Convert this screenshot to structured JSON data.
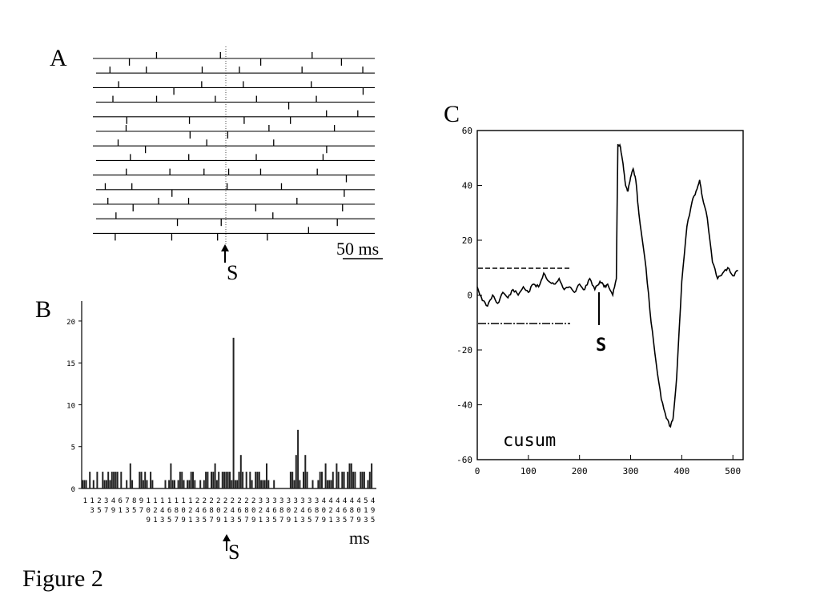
{
  "figure": {
    "caption": "Figure 2"
  },
  "panels": {
    "a": {
      "letter": "A",
      "stimulus_label": "S",
      "scale_bar_label": "50 ms",
      "sweep_count": 13
    },
    "b": {
      "letter": "B",
      "stimulus_label": "S",
      "x_unit_label": "ms",
      "y_ticks": [
        "0",
        "5",
        "10",
        "15",
        "20"
      ],
      "x_tick_columns": [
        [
          "1",
          "",
          ""
        ],
        [
          "1",
          "3",
          ""
        ],
        [
          "2",
          "5",
          ""
        ],
        [
          "3",
          "7",
          ""
        ],
        [
          "4",
          "9",
          ""
        ],
        [
          "6",
          "1",
          ""
        ],
        [
          "7",
          "3",
          ""
        ],
        [
          "8",
          "5",
          ""
        ],
        [
          "9",
          "7",
          ""
        ],
        [
          "1",
          "0",
          "9"
        ],
        [
          "1",
          "2",
          "1"
        ],
        [
          "1",
          "4",
          "3"
        ],
        [
          "1",
          "6",
          "5"
        ],
        [
          "1",
          "8",
          "7"
        ],
        [
          "1",
          "0",
          "9"
        ],
        [
          "1",
          "2",
          "1"
        ],
        [
          "2",
          "4",
          "3"
        ],
        [
          "2",
          "6",
          "5"
        ],
        [
          "2",
          "8",
          "7"
        ],
        [
          "2",
          "0",
          "9"
        ],
        [
          "2",
          "2",
          "1"
        ],
        [
          "2",
          "4",
          "3"
        ],
        [
          "2",
          "6",
          "5"
        ],
        [
          "2",
          "8",
          "7"
        ],
        [
          "2",
          "0",
          "9"
        ],
        [
          "3",
          "2",
          "1"
        ],
        [
          "3",
          "4",
          "3"
        ],
        [
          "3",
          "6",
          "5"
        ],
        [
          "3",
          "8",
          "7"
        ],
        [
          "3",
          "0",
          "9"
        ],
        [
          "3",
          "2",
          "1"
        ],
        [
          "3",
          "4",
          "3"
        ],
        [
          "3",
          "6",
          "5"
        ],
        [
          "3",
          "8",
          "7"
        ],
        [
          "4",
          "0",
          "9"
        ],
        [
          "4",
          "2",
          "1"
        ],
        [
          "4",
          "4",
          "3"
        ],
        [
          "4",
          "6",
          "5"
        ],
        [
          "4",
          "8",
          "7"
        ],
        [
          "4",
          "0",
          "9"
        ],
        [
          "5",
          "1",
          "3"
        ],
        [
          "4",
          "9",
          "5"
        ]
      ]
    },
    "c": {
      "letter": "C",
      "stimulus_label": "S",
      "annotation": "cusum",
      "y_ticks": [
        "60",
        "40",
        "20",
        "0",
        "-20",
        "-40",
        "-60"
      ],
      "x_ticks": [
        "0",
        "100",
        "200",
        "300",
        "400",
        "500"
      ]
    }
  },
  "chart_data": [
    {
      "panel": "A",
      "type": "raster",
      "description_units": "ms",
      "stimulus_time": 0,
      "sweeps": 13
    },
    {
      "panel": "B",
      "type": "bar",
      "title": "",
      "xlabel": "ms",
      "ylabel": "",
      "ylim": [
        0,
        22
      ],
      "bin_count": 160,
      "stimulus_bin": 80,
      "peak": {
        "bin": 82,
        "value": 18
      },
      "baseline_max": 5,
      "secondary_peak": {
        "bin": 117,
        "value": 7
      }
    },
    {
      "panel": "C",
      "type": "line",
      "title": "",
      "xlabel": "",
      "ylabel": "",
      "xlim": [
        0,
        520
      ],
      "ylim": [
        -60,
        60
      ],
      "upper_limit": 10,
      "lower_limit": -10,
      "limit_span_x": [
        0,
        185
      ],
      "stimulus_x": 240,
      "series": [
        {
          "x": [
            0,
            10,
            20,
            30,
            40,
            50,
            60,
            70,
            80,
            90,
            100,
            110,
            120,
            130,
            140,
            150,
            160,
            170,
            180,
            190,
            200,
            210,
            220,
            230,
            240,
            248,
            255,
            265,
            272,
            275,
            280,
            285,
            290,
            295,
            300,
            305,
            310,
            315,
            320,
            330,
            340,
            350,
            360,
            370,
            378,
            383,
            390,
            400,
            410,
            420,
            428,
            435,
            440,
            450,
            460,
            470,
            480,
            490,
            500,
            510
          ],
          "y": [
            3,
            -2,
            -4,
            0,
            -3,
            1,
            -1,
            2,
            0,
            3,
            1,
            4,
            3,
            8,
            5,
            4,
            6,
            2,
            3,
            1,
            4,
            2,
            6,
            2,
            5,
            3,
            4,
            0,
            6,
            55,
            54,
            48,
            40,
            38,
            43,
            46,
            42,
            32,
            24,
            10,
            -10,
            -25,
            -38,
            -45,
            -48,
            -45,
            -30,
            5,
            25,
            34,
            38,
            42,
            36,
            28,
            12,
            6,
            8,
            10,
            7,
            9
          ]
        }
      ]
    }
  ]
}
